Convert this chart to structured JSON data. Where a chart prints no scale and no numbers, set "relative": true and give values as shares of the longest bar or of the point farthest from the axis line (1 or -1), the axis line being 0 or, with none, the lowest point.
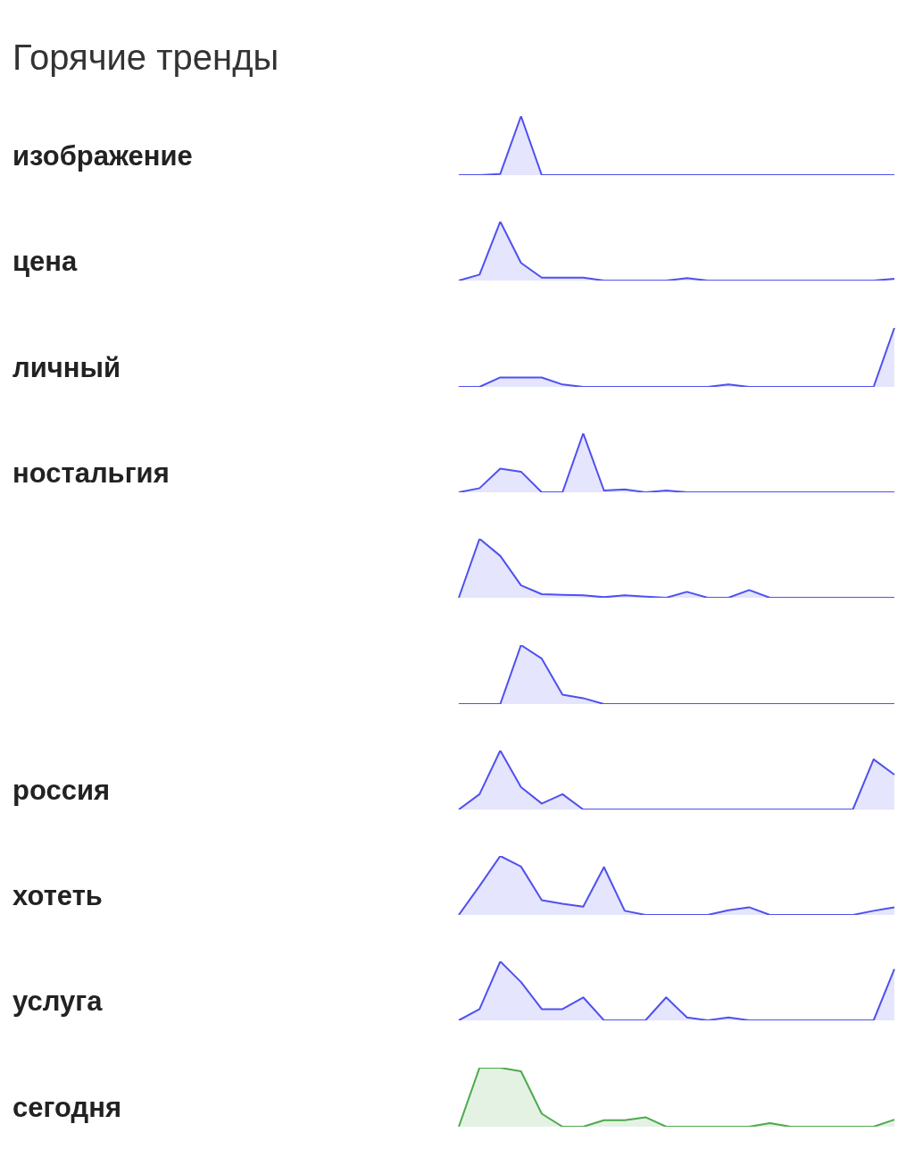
{
  "chart_data": [
    {
      "type": "other",
      "title": "Горячие тренды"
    },
    {
      "type": "area",
      "ylabel": "изображение",
      "relative": true,
      "color": "#5050f0",
      "categories": [
        null,
        null,
        null,
        null,
        null,
        null,
        null,
        null,
        null,
        null,
        null,
        null,
        null,
        null,
        null,
        null,
        null,
        null,
        null,
        null,
        null,
        null
      ],
      "values": [
        0,
        0,
        0.02,
        1,
        0,
        0,
        0,
        0,
        0,
        0,
        0,
        0,
        0,
        0,
        0,
        0,
        0,
        0,
        0,
        0,
        0,
        0
      ]
    },
    {
      "type": "area",
      "ylabel": "цена",
      "relative": true,
      "color": "#5050f0",
      "categories": [
        null,
        null,
        null,
        null,
        null,
        null,
        null,
        null,
        null,
        null,
        null,
        null,
        null,
        null,
        null,
        null,
        null,
        null,
        null,
        null,
        null,
        null
      ],
      "values": [
        0,
        0.1,
        1,
        0.3,
        0.05,
        0.05,
        0.05,
        0,
        0,
        0,
        0,
        0.04,
        0,
        0,
        0,
        0,
        0,
        0,
        0,
        0,
        0,
        0.03
      ]
    },
    {
      "type": "area",
      "ylabel": "личный",
      "relative": true,
      "color": "#5050f0",
      "categories": [
        null,
        null,
        null,
        null,
        null,
        null,
        null,
        null,
        null,
        null,
        null,
        null,
        null,
        null,
        null,
        null,
        null,
        null,
        null,
        null,
        null,
        null
      ],
      "values": [
        0,
        0,
        0.16,
        0.16,
        0.16,
        0.04,
        0,
        0,
        0,
        0,
        0,
        0,
        0,
        0.04,
        0,
        0,
        0,
        0,
        0,
        0,
        0,
        1
      ]
    },
    {
      "type": "area",
      "ylabel": "ностальгия",
      "relative": true,
      "color": "#5050f0",
      "categories": [
        null,
        null,
        null,
        null,
        null,
        null,
        null,
        null,
        null,
        null,
        null,
        null,
        null,
        null,
        null,
        null,
        null,
        null,
        null,
        null,
        null,
        null
      ],
      "values": [
        0,
        0.07,
        0.4,
        0.35,
        0,
        0,
        1,
        0.03,
        0.05,
        0,
        0.03,
        0,
        0,
        0,
        0,
        0,
        0,
        0,
        0,
        0,
        0,
        0
      ]
    },
    {
      "type": "area",
      "relative": true,
      "color": "#5050f0",
      "categories": [
        null,
        null,
        null,
        null,
        null,
        null,
        null,
        null,
        null,
        null,
        null,
        null,
        null,
        null,
        null,
        null,
        null,
        null,
        null,
        null,
        null,
        null
      ],
      "values": [
        0,
        1,
        0.71,
        0.21,
        0.06,
        0.05,
        0.04,
        0.01,
        0.04,
        0.02,
        0,
        0.1,
        0,
        0,
        0.13,
        0,
        0,
        0,
        0,
        0,
        0,
        0
      ]
    },
    {
      "type": "area",
      "relative": true,
      "color": "#5050f0",
      "categories": [
        null,
        null,
        null,
        null,
        null,
        null,
        null,
        null,
        null,
        null,
        null,
        null,
        null,
        null,
        null,
        null,
        null,
        null,
        null,
        null,
        null,
        null
      ],
      "values": [
        0,
        0,
        0,
        1,
        0.77,
        0.16,
        0.1,
        0,
        0,
        0,
        0,
        0,
        0,
        0,
        0,
        0,
        0,
        0,
        0,
        0,
        0,
        0
      ]
    },
    {
      "type": "area",
      "ylabel": "россия",
      "relative": true,
      "color": "#5050f0",
      "categories": [
        null,
        null,
        null,
        null,
        null,
        null,
        null,
        null,
        null,
        null,
        null,
        null,
        null,
        null,
        null,
        null,
        null,
        null,
        null,
        null,
        null,
        null
      ],
      "values": [
        0,
        0.26,
        1,
        0.38,
        0.1,
        0.26,
        0,
        0,
        0,
        0,
        0,
        0,
        0,
        0,
        0,
        0,
        0,
        0,
        0,
        0,
        0.85,
        0.59
      ]
    },
    {
      "type": "area",
      "ylabel": "хотеть",
      "relative": true,
      "color": "#5050f0",
      "categories": [
        null,
        null,
        null,
        null,
        null,
        null,
        null,
        null,
        null,
        null,
        null,
        null,
        null,
        null,
        null,
        null,
        null,
        null,
        null,
        null,
        null,
        null
      ],
      "values": [
        0,
        0.49,
        1,
        0.82,
        0.25,
        0.19,
        0.14,
        0.81,
        0.07,
        0,
        0,
        0,
        0,
        0.08,
        0.13,
        0,
        0,
        0,
        0,
        0,
        0.07,
        0.13
      ]
    },
    {
      "type": "area",
      "ylabel": "услуга",
      "relative": true,
      "color": "#5050f0",
      "categories": [
        null,
        null,
        null,
        null,
        null,
        null,
        null,
        null,
        null,
        null,
        null,
        null,
        null,
        null,
        null,
        null,
        null,
        null,
        null,
        null,
        null,
        null
      ],
      "values": [
        0,
        0.19,
        1,
        0.65,
        0.19,
        0.19,
        0.39,
        0,
        0,
        0,
        0.39,
        0.05,
        0,
        0.05,
        0,
        0,
        0,
        0,
        0,
        0,
        0,
        0.87
      ]
    },
    {
      "type": "area",
      "ylabel": "сегодня",
      "relative": true,
      "color": "#4caa4c",
      "categories": [
        null,
        null,
        null,
        null,
        null,
        null,
        null,
        null,
        null,
        null,
        null,
        null,
        null,
        null,
        null,
        null,
        null,
        null,
        null,
        null,
        null,
        null
      ],
      "values": [
        0,
        1,
        1,
        0.94,
        0.22,
        0,
        0,
        0.11,
        0.11,
        0.16,
        0,
        0,
        0,
        0,
        0,
        0.06,
        0,
        0,
        0,
        0,
        0,
        0.12
      ]
    }
  ]
}
